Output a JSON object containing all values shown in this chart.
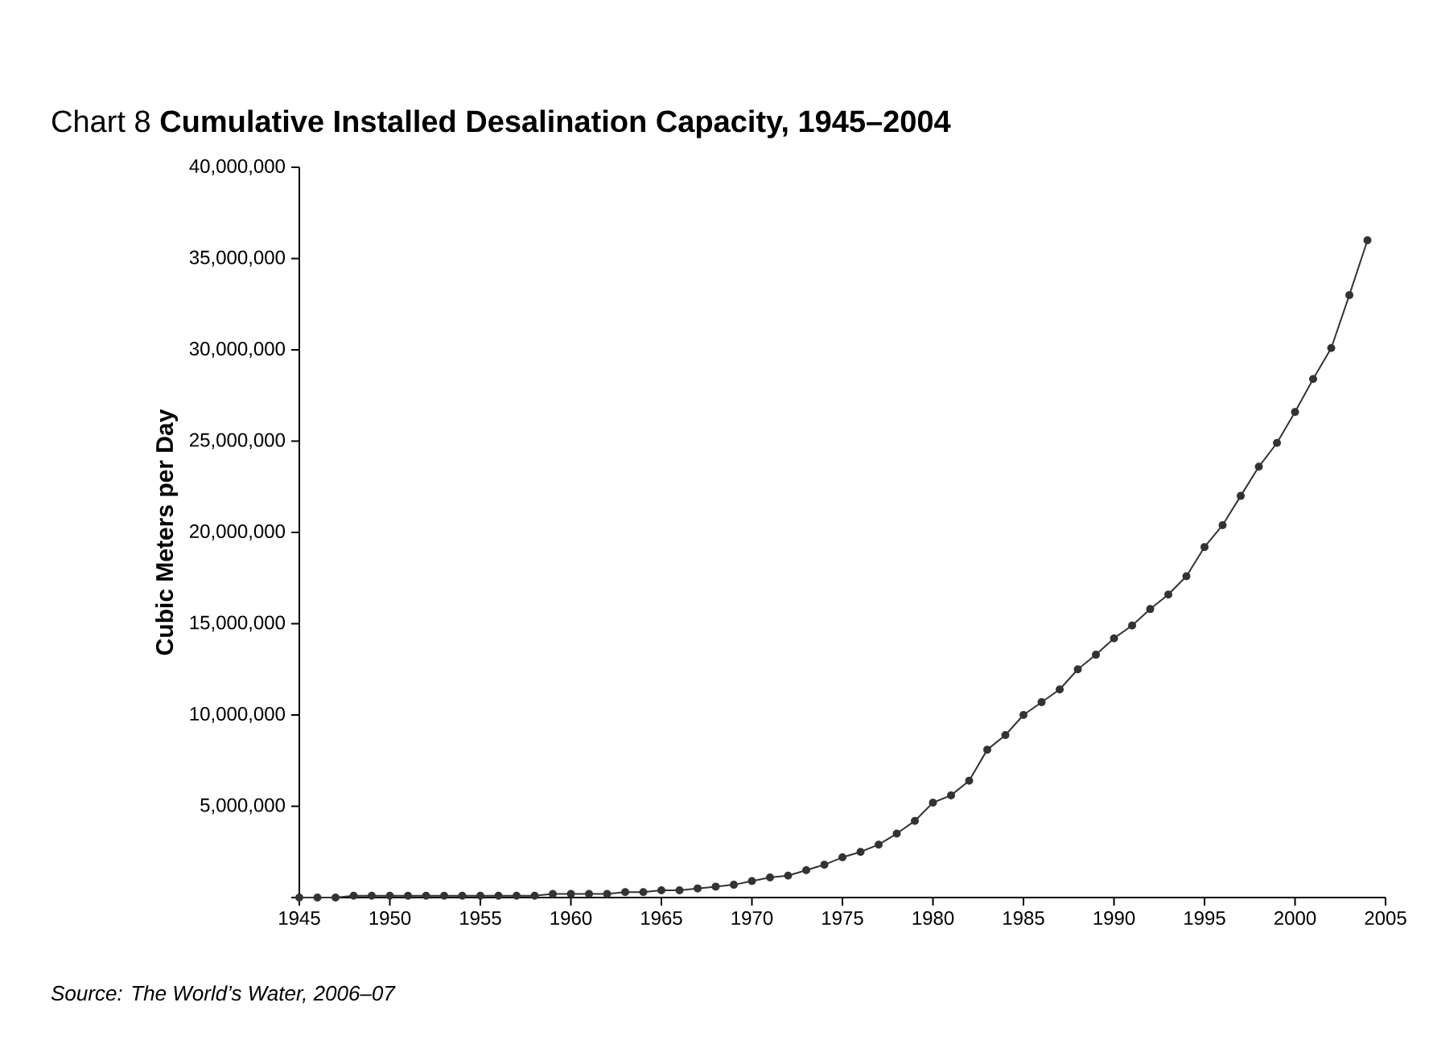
{
  "chart_data": {
    "type": "line",
    "title": "Chart 8 **Cumulative Installed Desalination Capacity, 1945–2004**",
    "ylabel": "Cubic Meters per Day",
    "annotations": [
      "Source: The World’s Water, 2006–07"
    ],
    "x": [
      1945,
      1946,
      1947,
      1948,
      1949,
      1950,
      1951,
      1952,
      1953,
      1954,
      1955,
      1956,
      1957,
      1958,
      1959,
      1960,
      1961,
      1962,
      1963,
      1964,
      1965,
      1966,
      1967,
      1968,
      1969,
      1970,
      1971,
      1972,
      1973,
      1974,
      1975,
      1976,
      1977,
      1978,
      1979,
      1980,
      1981,
      1982,
      1983,
      1984,
      1985,
      1986,
      1987,
      1988,
      1989,
      1990,
      1991,
      1992,
      1993,
      1994,
      1995,
      1996,
      1997,
      1998,
      1999,
      2000,
      2001,
      2002,
      2003,
      2004
    ],
    "series": [
      {
        "color": "#333333",
        "values": [
          0,
          0,
          0,
          100000,
          100000,
          100000,
          100000,
          100000,
          100000,
          100000,
          100000,
          100000,
          100000,
          100000,
          200000,
          200000,
          200000,
          200000,
          300000,
          300000,
          400000,
          400000,
          500000,
          600000,
          700000,
          900000,
          1100000,
          1200000,
          1500000,
          1800000,
          2200000,
          2500000,
          2900000,
          3500000,
          4200000,
          5200000,
          5600000,
          6400000,
          8100000,
          8900000,
          10000000,
          10700000,
          11400000,
          12500000,
          13300000,
          14200000,
          14900000,
          15800000,
          16600000,
          17600000,
          19200000,
          20400000,
          22000000,
          23600000,
          24900000,
          26600000,
          28400000,
          30100000,
          33000000,
          36000000
        ]
      }
    ],
    "xlim": [
      1945,
      2005
    ],
    "ylim": [
      0,
      40000000
    ],
    "xticks": [
      1945,
      1950,
      1955,
      1960,
      1965,
      1970,
      1975,
      1980,
      1985,
      1990,
      1995,
      2000,
      2005
    ],
    "yticks": [
      {
        "value": 0,
        "label": null
      },
      {
        "value": 5000000,
        "label": "5,000,000"
      },
      {
        "value": 10000000,
        "label": "10,000,000"
      },
      {
        "value": 15000000,
        "label": "15,000,000"
      },
      {
        "value": 20000000,
        "label": "20,000,000"
      },
      {
        "value": 25000000,
        "label": "25,000,000"
      },
      {
        "value": 30000000,
        "label": "30,000,000"
      },
      {
        "value": 35000000,
        "label": "35,000,000"
      },
      {
        "value": 40000000,
        "label": "40,000,000"
      }
    ],
    "grid": false,
    "marker": "circle",
    "line_style": "solid"
  }
}
